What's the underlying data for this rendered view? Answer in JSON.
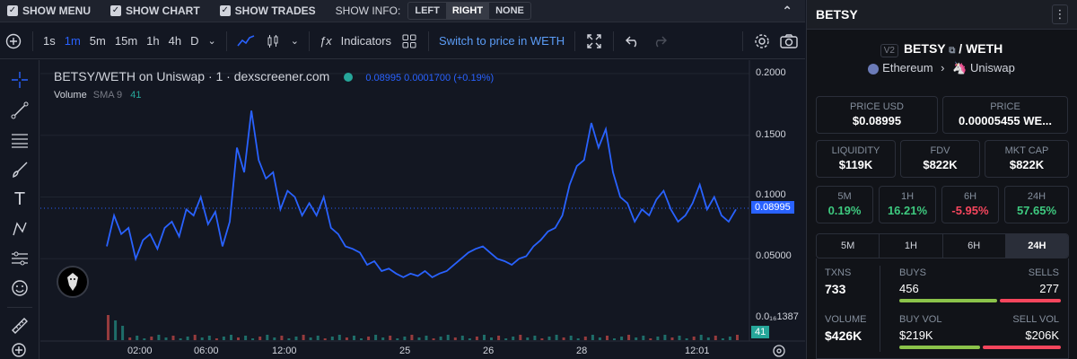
{
  "options_bar": {
    "show_menu": "SHOW MENU",
    "show_chart": "SHOW CHART",
    "show_trades": "SHOW TRADES",
    "show_info_label": "SHOW INFO:",
    "info_options": [
      "LEFT",
      "RIGHT",
      "NONE"
    ],
    "info_selected": "RIGHT"
  },
  "toolbar": {
    "timeframes": [
      "1s",
      "1m",
      "5m",
      "15m",
      "1h",
      "4h",
      "D"
    ],
    "active_timeframe": "1m",
    "indicators_label": "Indicators",
    "switch_label": "Switch to price in WETH"
  },
  "chart_legend": {
    "title": "BETSY/WETH on Uniswap · 1 · dexscreener.com",
    "ohlc_values": "0.08995  0.0001700 (+0.19%)",
    "volume_label": "Volume",
    "sma_label": "SMA 9",
    "volume_value": "41"
  },
  "chart_data": {
    "type": "line",
    "title": "BETSY/WETH on Uniswap · 1 · dexscreener.com",
    "x_ticks": [
      "02:00",
      "06:00",
      "12:00",
      "25",
      "26",
      "28",
      "12:01"
    ],
    "y_ticks": [
      "0.2000",
      "0.1500",
      "0.1000",
      "0.05000",
      "0.0₁₆1387"
    ],
    "ylim": [
      0,
      0.2
    ],
    "last_price": "0.08995",
    "last_volume": "41",
    "series": [
      {
        "values": [
          0.06,
          0.085,
          0.07,
          0.075,
          0.05,
          0.065,
          0.07,
          0.058,
          0.075,
          0.08,
          0.068,
          0.09,
          0.085,
          0.1,
          0.078,
          0.088,
          0.06,
          0.08,
          0.14,
          0.12,
          0.17,
          0.13,
          0.115,
          0.12,
          0.09,
          0.105,
          0.1,
          0.085,
          0.095,
          0.085,
          0.1,
          0.075,
          0.07,
          0.06,
          0.058,
          0.055,
          0.045,
          0.048,
          0.04,
          0.042,
          0.038,
          0.035,
          0.038,
          0.036,
          0.04,
          0.035,
          0.038,
          0.04,
          0.045,
          0.05,
          0.055,
          0.058,
          0.06,
          0.055,
          0.05,
          0.048,
          0.045,
          0.05,
          0.052,
          0.06,
          0.065,
          0.072,
          0.075,
          0.085,
          0.11,
          0.125,
          0.13,
          0.16,
          0.14,
          0.155,
          0.12,
          0.1,
          0.095,
          0.08,
          0.09,
          0.085,
          0.098,
          0.105,
          0.09,
          0.08,
          0.085,
          0.095,
          0.11,
          0.09,
          0.1,
          0.085,
          0.08,
          0.09
        ]
      }
    ]
  },
  "right_panel": {
    "token": "BETSY",
    "version": "V2",
    "pair_base": "BETSY",
    "pair_quote": "/ WETH",
    "chain": "Ethereum",
    "dex": "Uniswap",
    "price_usd_label": "PRICE USD",
    "price_usd": "$0.08995",
    "price_label": "PRICE",
    "price_weth": "0.00005455 WE...",
    "liquidity_label": "LIQUIDITY",
    "liquidity": "$119K",
    "fdv_label": "FDV",
    "fdv": "$822K",
    "mktcap_label": "MKT CAP",
    "mktcap": "$822K",
    "changes": [
      {
        "label": "5M",
        "value": "0.19%",
        "dir": "pos"
      },
      {
        "label": "1H",
        "value": "16.21%",
        "dir": "pos"
      },
      {
        "label": "6H",
        "value": "-5.95%",
        "dir": "neg"
      },
      {
        "label": "24H",
        "value": "57.65%",
        "dir": "pos"
      }
    ],
    "tabs": [
      "5M",
      "1H",
      "6H",
      "24H"
    ],
    "active_tab": "24H",
    "txns_label": "TXNS",
    "txns": "733",
    "buys_label": "BUYS",
    "buys": "456",
    "sells_label": "SELLS",
    "sells": "277",
    "volume_label": "VOLUME",
    "volume": "$426K",
    "buy_vol_label": "BUY VOL",
    "buy_vol": "$219K",
    "sell_vol_label": "SELL VOL",
    "sell_vol": "$206K",
    "colors": {
      "buy": "#8bc34a",
      "sell": "#f6465d",
      "pos": "#3ec97f",
      "neg": "#f6465d"
    }
  }
}
